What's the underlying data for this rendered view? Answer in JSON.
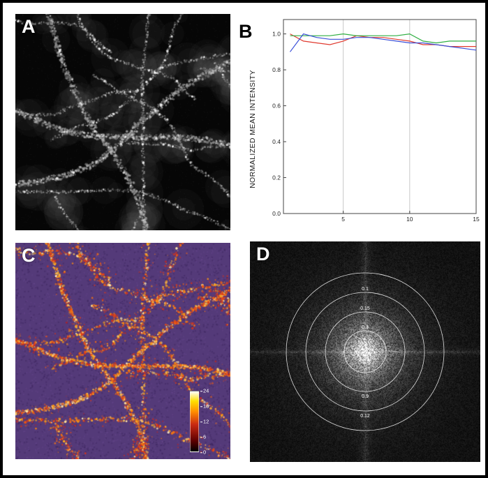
{
  "panels": {
    "a": {
      "label": "A"
    },
    "b": {
      "label": "B"
    },
    "c": {
      "label": "C",
      "background_color": "#543a79",
      "colorbar": {
        "ticks": [
          "24",
          "18",
          "12",
          "6",
          "0"
        ]
      }
    },
    "d": {
      "label": "D",
      "ring_color": "#ffffff",
      "rings": [
        {
          "radius": 113,
          "top_label": "",
          "bottom_label": ""
        },
        {
          "radius": 85,
          "top_label": "0.1",
          "bottom_label": "0.12"
        },
        {
          "radius": 57,
          "top_label": "0.15",
          "bottom_label": "0.9"
        },
        {
          "radius": 30,
          "top_label": "0.3",
          "bottom_label": ""
        }
      ]
    }
  },
  "chart_data": {
    "type": "line",
    "title": "",
    "xlabel": "",
    "ylabel": "NORMALIZED MEAN INTENSITY",
    "x": [
      1,
      2,
      3,
      4,
      5,
      6,
      7,
      8,
      9,
      10,
      11,
      12,
      13,
      14,
      15
    ],
    "xlim": [
      0.5,
      15
    ],
    "ylim": [
      0,
      1.08
    ],
    "xticks": [
      5,
      10,
      15
    ],
    "yticks": [
      0.0,
      0.2,
      0.4,
      0.6,
      0.8,
      1.0
    ],
    "gridlines_x": [
      5,
      10
    ],
    "grid": "vertical-only",
    "legend": "none",
    "series": [
      {
        "name": "red",
        "color": "#e03a2f",
        "values": [
          1.0,
          0.96,
          0.95,
          0.94,
          0.96,
          0.99,
          0.98,
          0.98,
          0.97,
          0.96,
          0.94,
          0.94,
          0.93,
          0.93,
          0.93
        ]
      },
      {
        "name": "green",
        "color": "#2fae42",
        "values": [
          0.99,
          0.99,
          0.99,
          0.99,
          1.0,
          0.99,
          0.99,
          0.99,
          0.99,
          1.0,
          0.96,
          0.95,
          0.96,
          0.96,
          0.96
        ]
      },
      {
        "name": "blue",
        "color": "#3a4fd8",
        "values": [
          0.9,
          1.0,
          0.98,
          0.97,
          0.97,
          0.98,
          0.98,
          0.97,
          0.96,
          0.95,
          0.95,
          0.94,
          0.93,
          0.92,
          0.91
        ]
      }
    ]
  }
}
